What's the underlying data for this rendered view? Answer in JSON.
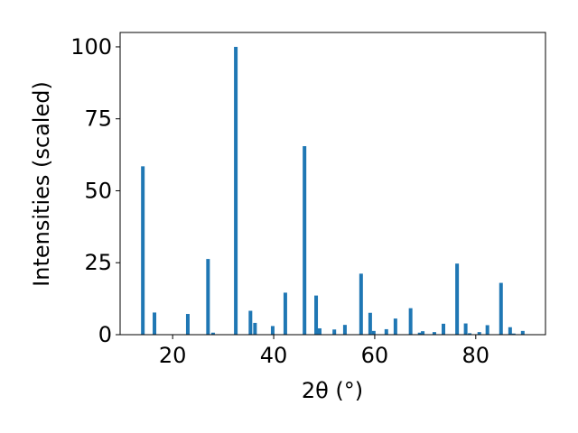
{
  "chart_data": {
    "type": "bar",
    "x_label": "2θ (°)",
    "y_label": "Intensities (scaled)",
    "color": "#1f77b4",
    "x": [
      14.1,
      16.4,
      23.0,
      27.0,
      28.0,
      32.5,
      35.4,
      36.3,
      39.8,
      42.3,
      46.1,
      48.4,
      49.1,
      52.0,
      54.1,
      57.3,
      59.1,
      59.8,
      62.3,
      64.1,
      67.1,
      68.9,
      69.5,
      71.8,
      73.6,
      76.3,
      78.0,
      78.8,
      80.7,
      82.3,
      85.0,
      86.8,
      87.5,
      89.3
    ],
    "values": [
      58.5,
      7.7,
      7.2,
      26.3,
      0.7,
      100,
      8.3,
      4.1,
      3.0,
      14.6,
      65.5,
      13.6,
      2.2,
      1.8,
      3.4,
      21.2,
      7.6,
      1.3,
      1.9,
      5.6,
      9.2,
      0.7,
      1.2,
      0.9,
      3.8,
      24.7,
      3.9,
      0.5,
      0.9,
      3.3,
      18.0,
      2.6,
      0.4,
      1.3
    ],
    "xlim": [
      9.6,
      93.8
    ],
    "ylim": [
      0,
      105
    ],
    "xticks": [
      20,
      40,
      60,
      80
    ],
    "yticks": [
      0,
      25,
      50,
      75,
      100
    ]
  }
}
